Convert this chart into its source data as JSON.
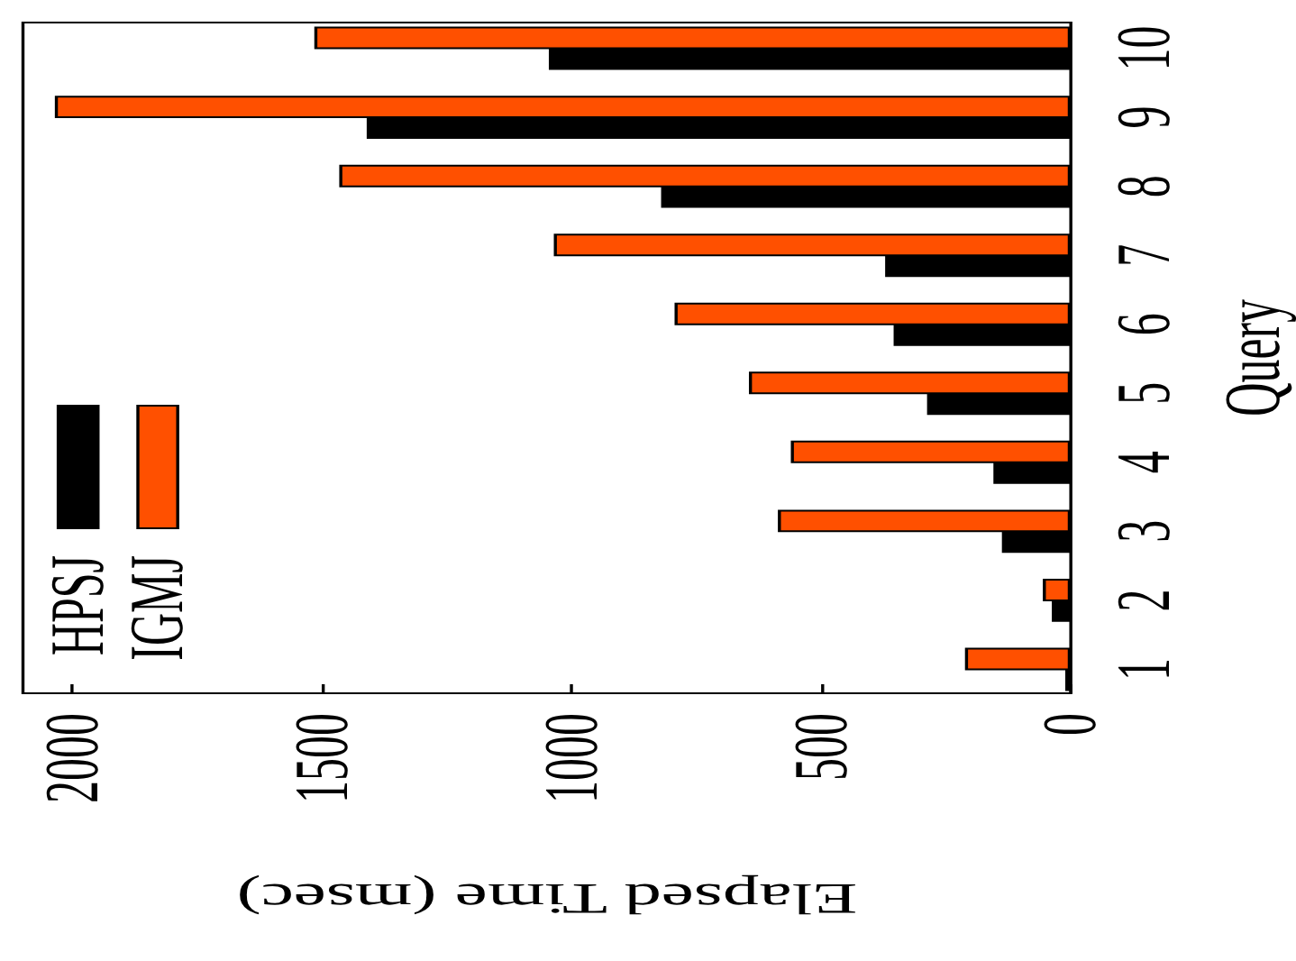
{
  "chart_data": {
    "type": "bar",
    "orientation": "horizontal",
    "categories": [
      "10",
      "9",
      "8",
      "7",
      "6",
      "5",
      "4",
      "3",
      "2",
      "1"
    ],
    "series": [
      {
        "name": "HPSJ",
        "color": "#000000",
        "values": [
          1040,
          1405,
          815,
          366,
          349,
          282,
          149,
          132,
          32,
          5
        ]
      },
      {
        "name": "IGMJ",
        "color": "#ff5000",
        "values": [
          1510,
          2030,
          1460,
          1030,
          788,
          639,
          555,
          581,
          50,
          206
        ]
      }
    ],
    "xlim": [
      2100,
      0
    ],
    "xticks": [
      2000,
      1500,
      1000,
      500,
      0
    ],
    "xlabel": "Elapsed Time (msec)",
    "ylabel": "Query",
    "legend": "bottom left"
  }
}
